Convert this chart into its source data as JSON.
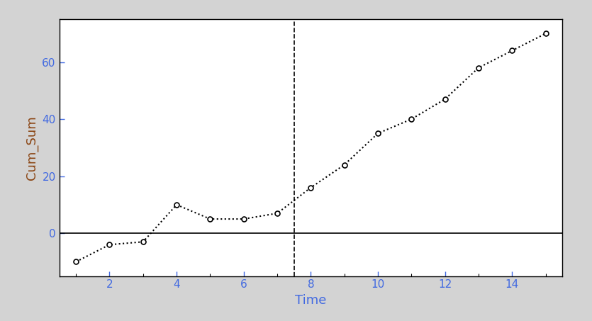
{
  "x": [
    1,
    2,
    3,
    4,
    5,
    6,
    7,
    8,
    9,
    10,
    11,
    12,
    13,
    14,
    15
  ],
  "y": [
    -10,
    -4,
    -3,
    10,
    5,
    5,
    7,
    16,
    24,
    35,
    40,
    47,
    58,
    64,
    70
  ],
  "vline_x": 7.5,
  "hline_y": 0,
  "xlabel": "Time",
  "ylabel": "Cum_Sum",
  "xlim": [
    0.5,
    15.5
  ],
  "ylim": [
    -15,
    75
  ],
  "xticks": [
    2,
    4,
    6,
    8,
    10,
    12,
    14
  ],
  "yticks": [
    0,
    20,
    40,
    60
  ],
  "bg_color": "#d3d3d3",
  "plot_bg_color": "#ffffff",
  "line_color": "#000000",
  "marker_color": "#ffffff",
  "marker_edge_color": "#000000",
  "hline_color": "#000000",
  "vline_color": "#000000",
  "xlabel_color": "#4169e1",
  "ylabel_color": "#8b4513",
  "tick_color": "#4169e1",
  "label_fontsize": 13,
  "tick_fontsize": 11
}
